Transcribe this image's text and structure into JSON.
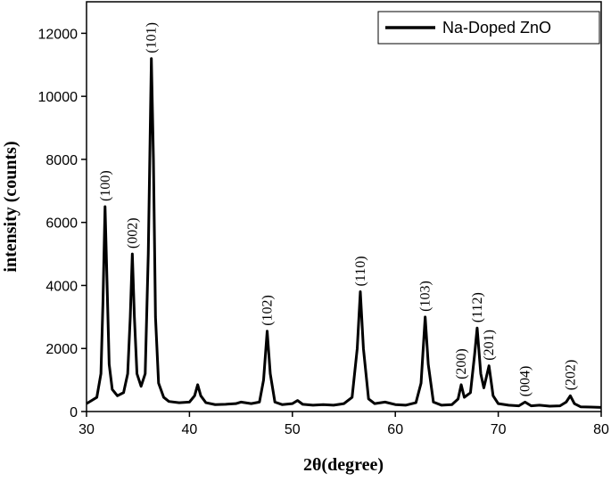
{
  "chart_data": {
    "type": "line",
    "x_label": "2θ(degree)",
    "y_label": "intensity (counts)",
    "xlim": [
      30,
      80
    ],
    "ylim": [
      0,
      13000
    ],
    "xticks": [
      30,
      40,
      50,
      60,
      70,
      80
    ],
    "yticks": [
      0,
      2000,
      4000,
      6000,
      8000,
      10000,
      12000
    ],
    "legend": "upper right",
    "x": [
      30,
      30.5,
      31,
      31.4,
      31.6,
      31.8,
      32.0,
      32.2,
      32.5,
      33,
      33.6,
      34.0,
      34.25,
      34.45,
      34.65,
      34.9,
      35.3,
      35.7,
      36.0,
      36.3,
      36.5,
      36.7,
      37.0,
      37.5,
      38,
      39,
      40,
      40.5,
      40.8,
      41.1,
      41.6,
      42.5,
      43.5,
      44.5,
      45,
      46,
      46.8,
      47.2,
      47.55,
      47.85,
      48.3,
      49,
      50,
      50.5,
      51,
      52,
      53,
      54,
      55,
      55.8,
      56.3,
      56.6,
      56.9,
      57.4,
      58,
      59,
      60,
      61,
      62,
      62.5,
      62.9,
      63.2,
      63.7,
      64.5,
      65.5,
      66.1,
      66.4,
      66.7,
      67.3,
      67.7,
      67.95,
      68.3,
      68.6,
      69.1,
      69.5,
      70,
      71,
      72,
      72.6,
      73.2,
      74,
      75,
      76,
      76.6,
      77.0,
      77.4,
      78,
      79,
      80
    ],
    "series": [
      {
        "name": "Na-Doped ZnO",
        "color": "#000000",
        "values": [
          250,
          350,
          450,
          1200,
          3500,
          6500,
          4000,
          1500,
          700,
          500,
          600,
          1200,
          3000,
          5000,
          3000,
          1200,
          800,
          1200,
          5000,
          11200,
          8000,
          3000,
          900,
          450,
          320,
          280,
          300,
          500,
          850,
          500,
          280,
          220,
          230,
          250,
          300,
          250,
          300,
          1000,
          2550,
          1200,
          300,
          220,
          250,
          350,
          230,
          200,
          220,
          200,
          250,
          450,
          2000,
          3800,
          2000,
          400,
          250,
          300,
          220,
          200,
          280,
          900,
          3000,
          1500,
          300,
          200,
          220,
          400,
          850,
          450,
          600,
          1800,
          2650,
          1200,
          750,
          1450,
          500,
          250,
          200,
          180,
          300,
          180,
          200,
          170,
          180,
          300,
          500,
          250,
          150,
          140,
          130
        ]
      }
    ],
    "annotations": [
      {
        "text": "(100)",
        "x": 31.8
      },
      {
        "text": "(002)",
        "x": 34.45
      },
      {
        "text": "(101)",
        "x": 36.3
      },
      {
        "text": "(102)",
        "x": 47.55
      },
      {
        "text": "(110)",
        "x": 56.6
      },
      {
        "text": "(103)",
        "x": 62.9
      },
      {
        "text": "(200)",
        "x": 66.4
      },
      {
        "text": "(112)",
        "x": 67.95
      },
      {
        "text": "(201)",
        "x": 69.1
      },
      {
        "text": "(004)",
        "x": 72.6
      },
      {
        "text": "(202)",
        "x": 77.0
      }
    ]
  }
}
